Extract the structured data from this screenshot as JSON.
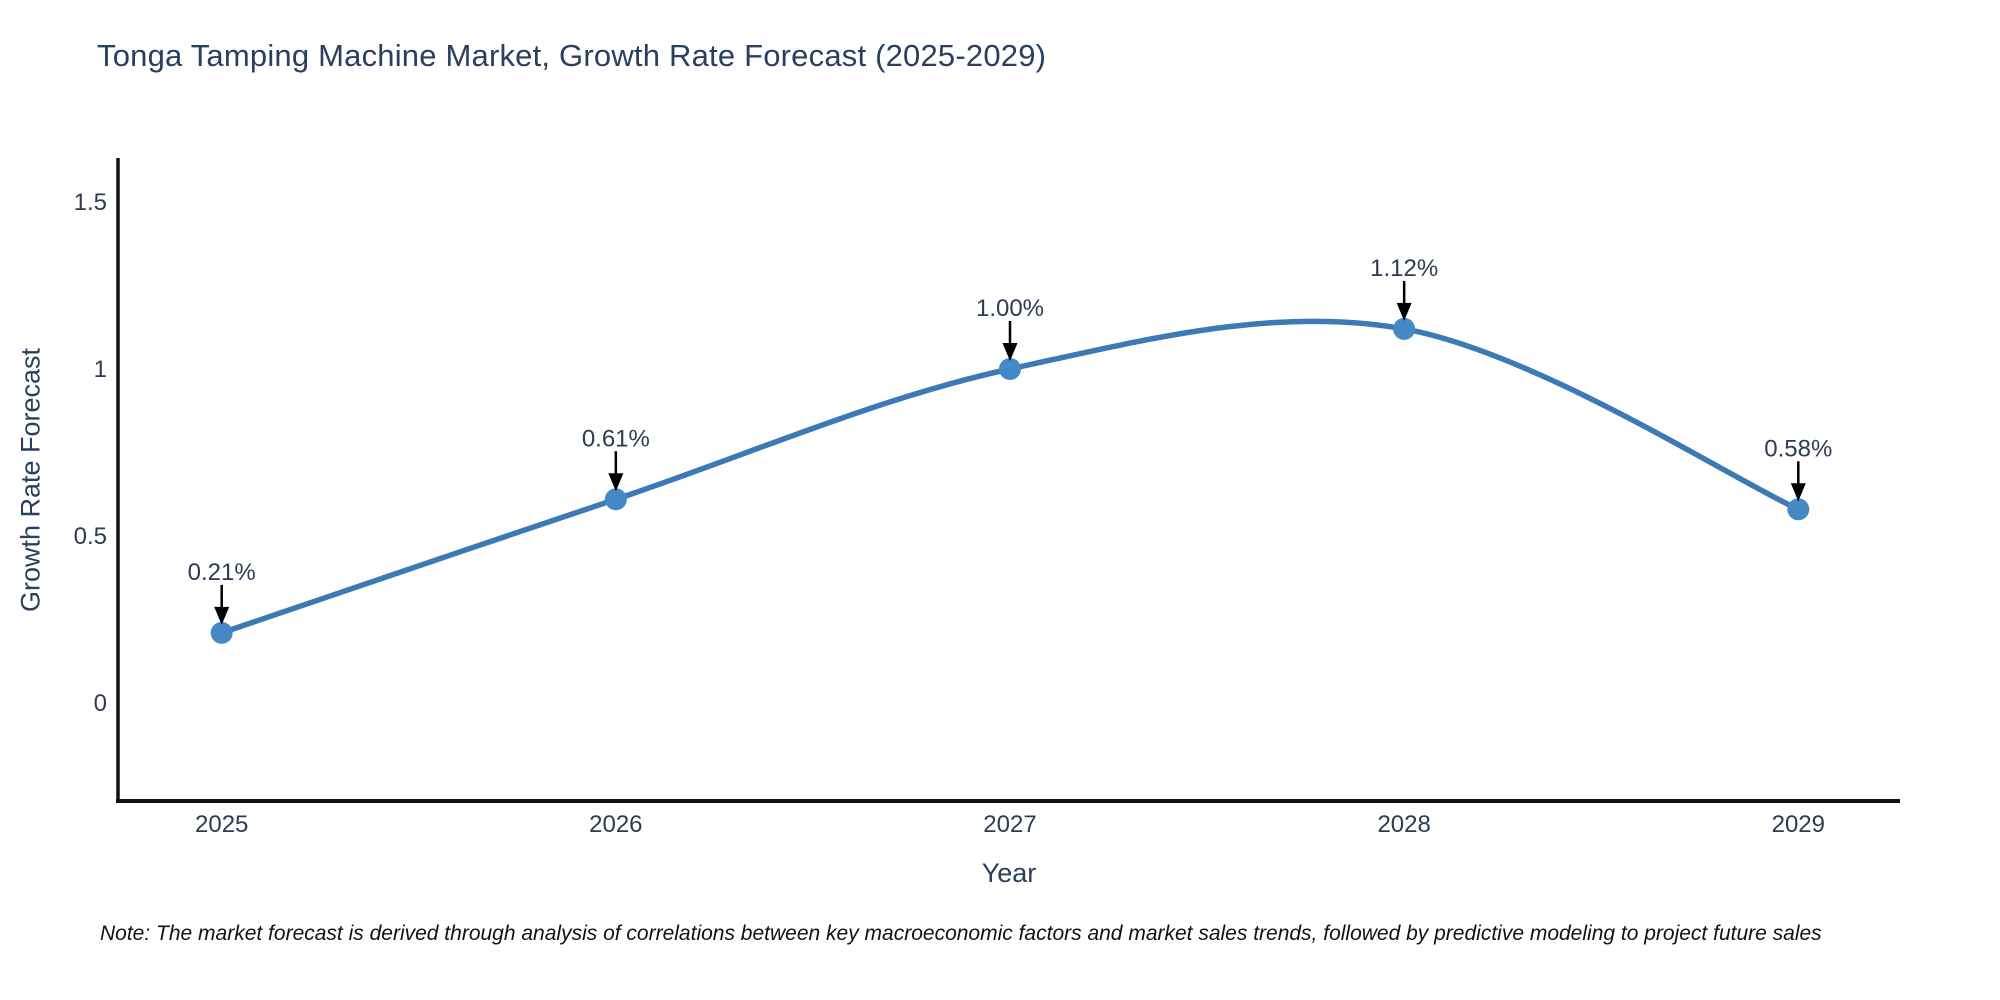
{
  "chart_data": {
    "type": "line",
    "title": "Tonga Tamping Machine Market, Growth Rate Forecast (2025-2029)",
    "x": [
      "2025",
      "2026",
      "2027",
      "2028",
      "2029"
    ],
    "series": [
      {
        "name": "Growth Rate Forecast",
        "values": [
          0.21,
          0.61,
          1.0,
          1.12,
          0.58
        ]
      }
    ],
    "point_labels": [
      "0.21%",
      "0.61%",
      "1.00%",
      "1.12%",
      "0.58%"
    ],
    "xlabel": "Year",
    "ylabel": "Growth Rate Forecast",
    "yticks": [
      "0",
      "0.5",
      "1",
      "1.5"
    ],
    "ytick_values": [
      0,
      0.5,
      1,
      1.5
    ],
    "ylim": [
      -0.3,
      1.62
    ],
    "line_shape": "spline",
    "grid": false,
    "legend": "none",
    "colors": {
      "line": "#3d7ab5",
      "marker": "#4489c6",
      "axis": "#111111",
      "text": "#2a3f5f",
      "annotation_arrow": "#000000"
    }
  },
  "footnote": {
    "text": "Note: The market forecast is derived through analysis of correlations between key macroeconomic factors and market sales trends, followed by predictive modeling to project future sales"
  }
}
